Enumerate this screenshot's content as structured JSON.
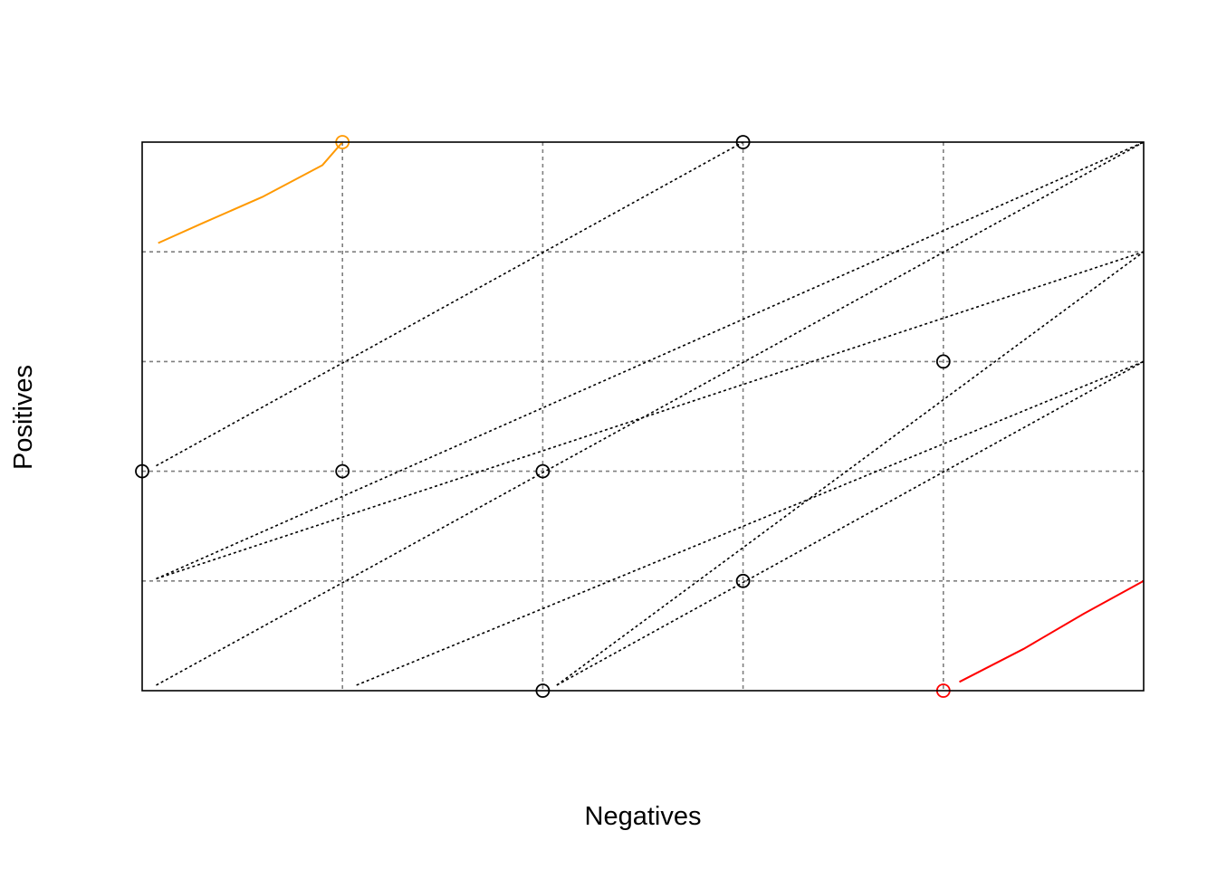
{
  "chart_data": {
    "type": "line",
    "title": "",
    "xlabel": "Negatives",
    "ylabel": "Positives",
    "xlim": [
      0,
      5
    ],
    "ylim": [
      0,
      5
    ],
    "x_gridlines": [
      1,
      2,
      3,
      4
    ],
    "y_gridlines": [
      1,
      2,
      3,
      4
    ],
    "grid": true,
    "ticks_shown": false,
    "iso_lines": [
      {
        "x": [
          0.07,
          3
        ],
        "y": [
          2.05,
          5
        ]
      },
      {
        "x": [
          0.07,
          5
        ],
        "y": [
          0.05,
          5
        ]
      },
      {
        "x": [
          0.07,
          5
        ],
        "y": [
          1.02,
          4
        ]
      },
      {
        "x": [
          0.07,
          5
        ],
        "y": [
          1.02,
          5
        ]
      },
      {
        "x": [
          1.07,
          5
        ],
        "y": [
          0.05,
          3
        ]
      },
      {
        "x": [
          2.07,
          5
        ],
        "y": [
          0.05,
          4
        ]
      },
      {
        "x": [
          2.07,
          5
        ],
        "y": [
          0.05,
          3
        ]
      }
    ],
    "points": [
      {
        "x": 0,
        "y": 2
      },
      {
        "x": 1,
        "y": 2
      },
      {
        "x": 2,
        "y": 2
      },
      {
        "x": 3,
        "y": 5
      },
      {
        "x": 3,
        "y": 1
      },
      {
        "x": 4,
        "y": 3
      },
      {
        "x": 2,
        "y": 0
      }
    ],
    "highlight_series": [
      {
        "color": "#FF9900",
        "x": [
          0.08,
          0.3,
          0.6,
          0.9,
          1.0
        ],
        "y": [
          4.08,
          4.26,
          4.5,
          4.79,
          5
        ]
      },
      {
        "color": "#FF0000",
        "x": [
          4.08,
          4.4,
          4.7,
          5.0
        ],
        "y": [
          0.08,
          0.38,
          0.7,
          1.0
        ]
      }
    ],
    "highlight_points": [
      {
        "color": "#FF9900",
        "x": 1,
        "y": 5
      },
      {
        "color": "#FF0000",
        "x": 4,
        "y": 0
      }
    ]
  }
}
